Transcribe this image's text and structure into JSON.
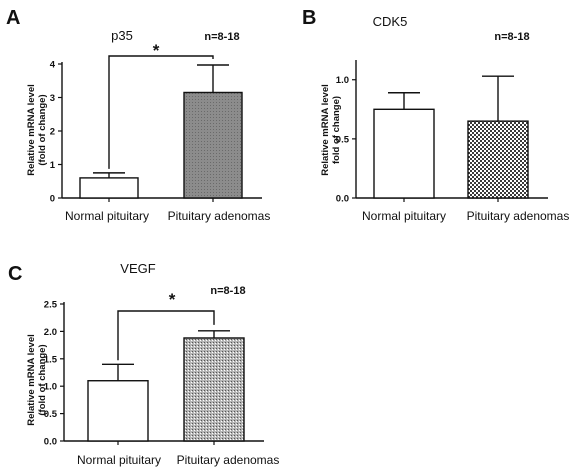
{
  "chart_data": [
    {
      "type": "bar",
      "panel": "A",
      "title": "p35",
      "annotation": "n=8-18",
      "ylabel_lines": [
        "Relative mRNA level",
        "(fold of change)"
      ],
      "categories": [
        "Normal pituitary",
        "Pituitary adenomas"
      ],
      "values": [
        0.6,
        3.15
      ],
      "errors": [
        0.15,
        0.82
      ],
      "fills": [
        "plain",
        "gray"
      ],
      "ylim": [
        0,
        4
      ],
      "yticks": [
        "0",
        "1",
        "2",
        "3",
        "4"
      ],
      "significance": "*"
    },
    {
      "type": "bar",
      "panel": "B",
      "title": "CDK5",
      "annotation": "n=8-18",
      "ylabel_lines": [
        "Relative mRNA level",
        "fold of change)"
      ],
      "categories": [
        "Normal pituitary",
        "Pituitary adenomas"
      ],
      "values": [
        0.75,
        0.65
      ],
      "errors": [
        0.14,
        0.38
      ],
      "fills": [
        "plain",
        "checker"
      ],
      "ylim": [
        0,
        1.15
      ],
      "yticks": [
        "0.0",
        "0.5",
        "1.0"
      ],
      "significance": ""
    },
    {
      "type": "bar",
      "panel": "C",
      "title": "VEGF",
      "annotation": "n=8-18",
      "ylabel_lines": [
        "Relative mRNA level",
        "(fold of change)"
      ],
      "categories": [
        "Normal pituitary",
        "Pituitary adenomas"
      ],
      "values": [
        1.1,
        1.88
      ],
      "errors": [
        0.3,
        0.13
      ],
      "fills": [
        "plain",
        "hatch"
      ],
      "ylim": [
        0,
        2.5
      ],
      "yticks": [
        "0.0",
        "0.5",
        "1.0",
        "1.5",
        "2.0",
        "2.5"
      ],
      "significance": "*"
    }
  ],
  "colors": {
    "axis": "#111111",
    "bar_outline": "#111111",
    "plain_fill": "#ffffff",
    "gray_fill": "#8a8a8a"
  }
}
